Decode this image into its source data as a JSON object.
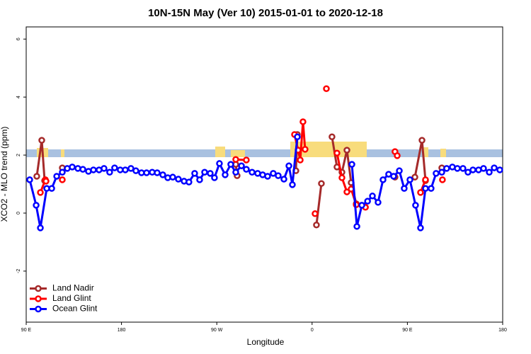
{
  "chart_data": {
    "type": "line",
    "title": "10N-15N May (Ver 10)   2015-01-01 to 2020-12-18",
    "x_label": "Longitude",
    "y_label": "XCO2 - MLO trend (ppm)",
    "xlim": [
      90,
      540
    ],
    "ylim": [
      -3.76,
      6.42
    ],
    "xticks": [
      {
        "value": 90,
        "label": "90 E"
      },
      180,
      {
        "value": 270,
        "label": "90 W"
      },
      {
        "value": 360,
        "label": "0"
      },
      {
        "value": 450,
        "label": "90 E"
      },
      {
        "value": 540,
        "label": "180"
      }
    ],
    "yticks": [
      -2,
      0,
      2,
      4,
      6
    ],
    "legend": "bottomleft",
    "series": [
      {
        "name": "Land Nadir",
        "color": "#a52a2a",
        "x": [
          100.0,
          104.7,
          107.4,
          null,
          124.1,
          null,
          287.9,
          289.2,
          null,
          344.7,
          346.1,
          null,
          364.1,
          368.8,
          null,
          378.8,
          383.5,
          388.2,
          392.9,
          396.9,
          401.7,
          null,
          438.3,
          null,
          457.1,
          463.8,
          467.1,
          null,
          482.5
        ],
        "values": [
          1.27,
          2.51,
          1.12,
          null,
          1.56,
          null,
          1.68,
          1.29,
          null,
          1.46,
          2.71,
          null,
          -0.41,
          1.02,
          null,
          2.63,
          1.59,
          1.41,
          2.17,
          1.05,
          0.32,
          null,
          1.24,
          null,
          1.24,
          2.51,
          1.12,
          null,
          1.56
        ]
      },
      {
        "name": "Land Glint",
        "color": "#ff0000",
        "x": [
          103.4,
          108.1,
          108.7,
          null,
          124.1,
          null,
          287.9,
          297.9,
          null,
          343.4,
          346.8,
          348.8,
          351.4,
          353.4,
          null,
          362.8,
          null,
          373.5,
          null,
          383.5,
          388.2,
          392.9,
          396.9,
          401.7,
          410.4,
          null,
          438.3,
          440.4,
          null,
          462.4,
          467.1,
          null,
          483.1
        ],
        "values": [
          0.71,
          1.15,
          1.1,
          null,
          1.15,
          null,
          1.85,
          1.83,
          null,
          2.71,
          2.17,
          1.83,
          3.15,
          2.2,
          null,
          -0.02,
          null,
          4.29,
          null,
          2.07,
          1.22,
          0.73,
          0.83,
          0.29,
          0.2,
          null,
          2.12,
          1.98,
          null,
          0.71,
          1.15,
          null,
          1.15
        ]
      },
      {
        "name": "Ocean Glint",
        "color": "#0000ff",
        "x": [
          93.3,
          99.4,
          103.4,
          109.4,
          114.1,
          118.8,
          124.1,
          128.8,
          133.5,
          138.8,
          143.5,
          148.8,
          153.5,
          158.8,
          163.5,
          168.8,
          173.5,
          178.8,
          183.6,
          188.9,
          193.6,
          198.9,
          203.7,
          209.0,
          213.7,
          219.0,
          223.7,
          228.4,
          233.7,
          239.1,
          243.7,
          249.1,
          253.8,
          258.5,
          263.8,
          267.8,
          272.5,
          277.9,
          283.2,
          287.9,
          293.3,
          297.9,
          303.3,
          308.6,
          313.3,
          318.0,
          323.3,
          328.0,
          333.4,
          338.1,
          341.4,
          346.1,
          null,
          397.6,
          402.3,
          407.0,
          412.4,
          417.0,
          422.3,
          427.0,
          432.3,
          437.0,
          442.4,
          447.0,
          452.4,
          457.7,
          462.4,
          467.1,
          472.4,
          477.1,
          482.5,
          487.1,
          492.5,
          497.2,
          502.5,
          507.2,
          511.9,
          517.2,
          521.9,
          527.3,
          532.0,
          537.3
        ],
        "values": [
          1.15,
          0.27,
          -0.51,
          0.85,
          0.85,
          1.27,
          1.41,
          1.54,
          1.59,
          1.54,
          1.51,
          1.44,
          1.49,
          1.49,
          1.54,
          1.41,
          1.56,
          1.49,
          1.49,
          1.54,
          1.46,
          1.39,
          1.39,
          1.41,
          1.39,
          1.32,
          1.22,
          1.24,
          1.17,
          1.1,
          1.07,
          1.37,
          1.15,
          1.41,
          1.37,
          1.22,
          1.71,
          1.32,
          1.68,
          1.41,
          1.63,
          1.51,
          1.41,
          1.37,
          1.32,
          1.27,
          1.37,
          1.29,
          1.17,
          1.63,
          0.98,
          2.63,
          null,
          1.68,
          -0.46,
          0.27,
          0.41,
          0.59,
          0.37,
          1.15,
          1.34,
          1.27,
          1.46,
          0.85,
          1.15,
          0.27,
          -0.51,
          0.85,
          0.85,
          1.37,
          1.41,
          1.54,
          1.59,
          1.54,
          1.54,
          1.41,
          1.49,
          1.49,
          1.54,
          1.41,
          1.56,
          1.49
        ]
      }
    ]
  }
}
